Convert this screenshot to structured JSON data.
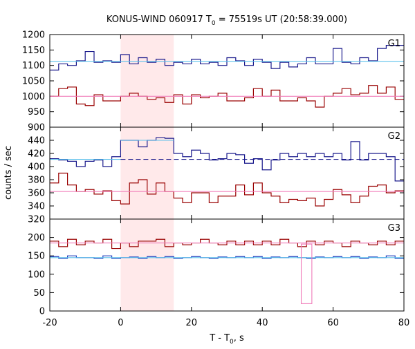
{
  "chart_data": {
    "type": "line",
    "title": "KONUS-WIND 060917 T0 = 75519s UT (20:58:39.000)",
    "title_parts": {
      "prefix": "KONUS-WIND 060917 T",
      "subscript": "0",
      "suffix": " = 75519s UT (20:58:39.000)"
    },
    "xlabel": "T - T0, s",
    "xlabel_parts": {
      "prefix": "T - T",
      "subscript": "0",
      "suffix": ", s"
    },
    "ylabel": "counts / sec",
    "xlim": [
      -20,
      80
    ],
    "xticks": [
      -20,
      0,
      20,
      40,
      60,
      80
    ],
    "shaded_interval": {
      "x": [
        0,
        15
      ],
      "color": "#ffe9ea"
    },
    "colors": {
      "dark_red": "#990000",
      "dark_blue": "#1a1a8c",
      "blue": "#1f3fbf",
      "light_blue": "#5bc0eb",
      "pink": "#f07ab8"
    },
    "bin_edges": [
      -20,
      -17.5,
      -15,
      -12.5,
      -10,
      -7.5,
      -5,
      -2.5,
      0,
      2.5,
      5,
      7.5,
      10,
      12.5,
      15,
      17.5,
      20,
      22.5,
      25,
      27.5,
      30,
      32.5,
      35,
      37.5,
      40,
      42.5,
      45,
      47.5,
      50,
      52.5,
      55,
      57.5,
      60,
      62.5,
      65,
      67.5,
      70,
      72.5,
      75,
      77.5,
      80
    ],
    "panels": [
      {
        "label": "G1",
        "ylim": [
          900,
          1200
        ],
        "yticks": [
          900,
          950,
          1000,
          1050,
          1100,
          1150,
          1200
        ],
        "series": [
          {
            "name": "G1 high",
            "color": "dark_blue",
            "style": "step",
            "values": [
              1085,
              1105,
              1100,
              1115,
              1145,
              1110,
              1115,
              1110,
              1135,
              1105,
              1125,
              1110,
              1120,
              1100,
              1110,
              1105,
              1120,
              1105,
              1110,
              1100,
              1125,
              1115,
              1100,
              1120,
              1110,
              1090,
              1110,
              1095,
              1105,
              1125,
              1105,
              1105,
              1155,
              1110,
              1105,
              1125,
              1115,
              1155,
              1165,
              1165
            ]
          },
          {
            "name": "G1 low",
            "color": "dark_red",
            "style": "step",
            "values": [
              1000,
              1025,
              1030,
              975,
              970,
              1005,
              985,
              985,
              1000,
              1010,
              1000,
              990,
              995,
              980,
              1005,
              975,
              1005,
              995,
              1000,
              1010,
              985,
              985,
              995,
              1025,
              1000,
              1020,
              985,
              985,
              995,
              985,
              965,
              1000,
              1010,
              1025,
              1005,
              1010,
              1035,
              1010,
              1030,
              990
            ]
          },
          {
            "name": "G1 high bg",
            "color": "light_blue",
            "style": "hline",
            "value": 1113
          },
          {
            "name": "G1 low bg",
            "color": "pink",
            "style": "hline",
            "value": 1000
          }
        ]
      },
      {
        "label": "G2",
        "ylim": [
          320,
          460
        ],
        "yticks": [
          320,
          340,
          360,
          380,
          400,
          420,
          440
        ],
        "series": [
          {
            "name": "G2 high",
            "color": "dark_blue",
            "style": "step",
            "values": [
              412,
              410,
              408,
              400,
              408,
              410,
              400,
              415,
              440,
              440,
              430,
              440,
              444,
              443,
              420,
              415,
              425,
              420,
              410,
              412,
              420,
              418,
              405,
              412,
              395,
              410,
              420,
              415,
              420,
              415,
              420,
              415,
              420,
              410,
              438,
              410,
              420,
              420,
              415,
              378
            ]
          },
          {
            "name": "G2 low",
            "color": "dark_red",
            "style": "step",
            "values": [
              375,
              390,
              372,
              362,
              365,
              358,
              363,
              348,
              343,
              375,
              380,
              358,
              375,
              362,
              352,
              345,
              360,
              360,
              345,
              355,
              355,
              372,
              357,
              375,
              360,
              355,
              345,
              350,
              348,
              352,
              340,
              350,
              365,
              357,
              345,
              355,
              370,
              372,
              360,
              363
            ]
          },
          {
            "name": "G2 high bg (pre)",
            "color": "light_blue",
            "style": "segment",
            "x": [
              -20,
              0
            ],
            "value": 411
          },
          {
            "name": "G2 high bg (burst)",
            "color": "light_blue",
            "style": "segment",
            "x": [
              0,
              15
            ],
            "value": 440
          },
          {
            "name": "G2 high bg (post)",
            "color": "dark_blue",
            "style": "dashed",
            "x": [
              0,
              80
            ],
            "value": 411
          },
          {
            "name": "G2 low bg",
            "color": "pink",
            "style": "hline",
            "value": 362
          }
        ]
      },
      {
        "label": "G3",
        "ylim": [
          0,
          250
        ],
        "yticks": [
          0,
          50,
          100,
          150,
          200
        ],
        "series": [
          {
            "name": "G3 high",
            "color": "dark_red",
            "style": "step",
            "values": [
              190,
              175,
              195,
              180,
              190,
              185,
              195,
              170,
              185,
              175,
              190,
              190,
              195,
              175,
              185,
              180,
              185,
              195,
              185,
              180,
              190,
              180,
              190,
              180,
              190,
              180,
              195,
              185,
              175,
              190,
              180,
              190,
              185,
              175,
              190,
              185,
              180,
              190,
              180,
              190
            ]
          },
          {
            "name": "G3 low",
            "color": "blue",
            "style": "step",
            "values": [
              148,
              143,
              150,
              145,
              145,
              143,
              150,
              143,
              145,
              147,
              143,
              148,
              145,
              148,
              143,
              145,
              148,
              145,
              143,
              147,
              145,
              148,
              145,
              148,
              143,
              147,
              145,
              148,
              145,
              143,
              147,
              145,
              148,
              145,
              148,
              143,
              147,
              145,
              150,
              143
            ]
          },
          {
            "name": "G3 high bg",
            "color": "pink",
            "style": "hline",
            "value": 185
          },
          {
            "name": "G3 low bg",
            "color": "light_blue",
            "style": "hline",
            "value": 145
          },
          {
            "name": "G3 dip",
            "color": "pink",
            "style": "box",
            "x": [
              51,
              54
            ],
            "value": 20,
            "top": 182
          }
        ]
      }
    ]
  }
}
